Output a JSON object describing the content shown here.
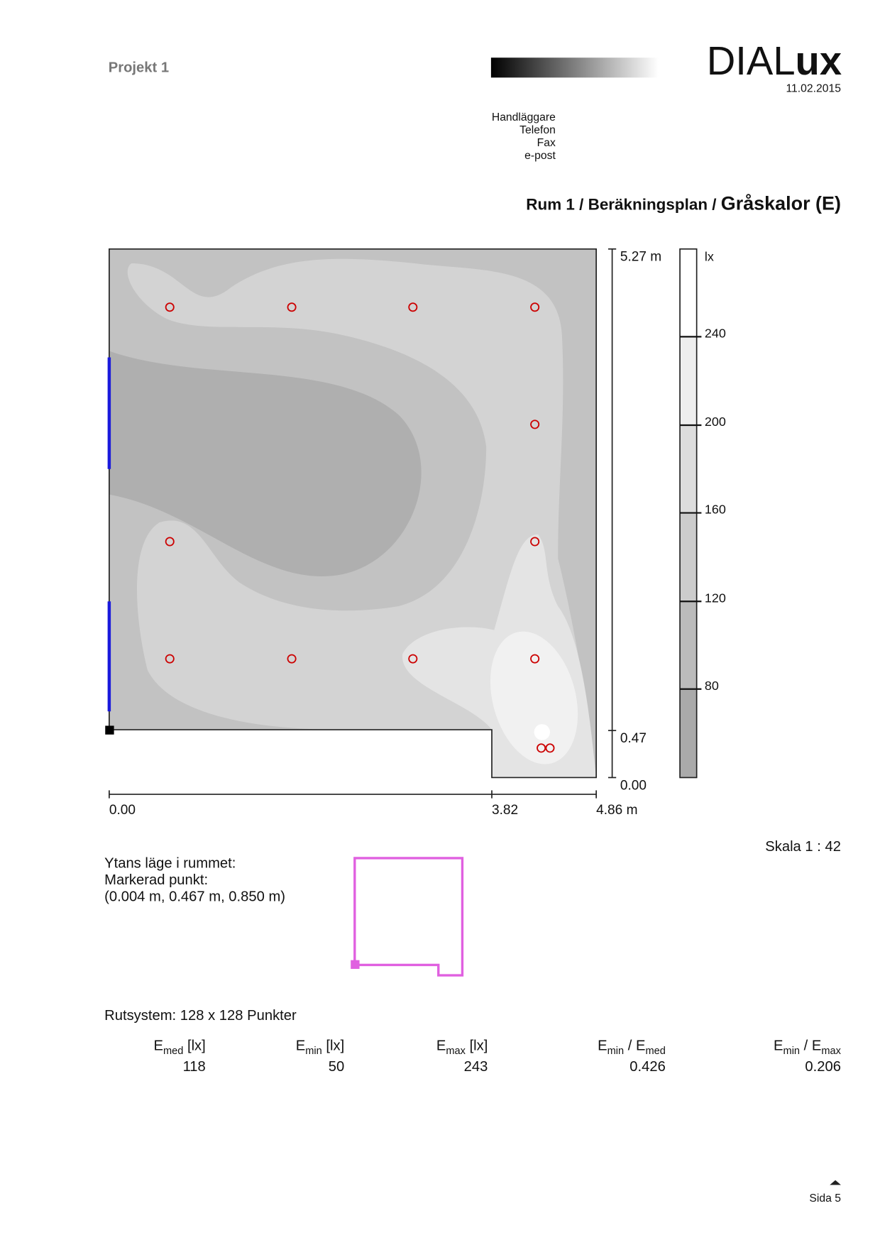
{
  "header": {
    "project": "Projekt 1",
    "logo_light": "DIAL",
    "logo_bold": "ux",
    "date": "11.02.2015",
    "contact": [
      "Handläggare",
      "Telefon",
      "Fax",
      "e-post"
    ]
  },
  "title": {
    "path": "Rum 1 / Beräkningsplan / ",
    "emphasis": "Gråskalor (E)"
  },
  "plan": {
    "y_dims": [
      "5.27 m",
      "0.47",
      "0.00"
    ],
    "x_dims": [
      "0.00",
      "3.82",
      "4.86 m"
    ]
  },
  "legend": {
    "unit": "lx",
    "levels": [
      "240",
      "200",
      "160",
      "120",
      "80"
    ]
  },
  "scale": "Skala 1 : 42",
  "position": {
    "lines": [
      "Ytans läge i rummet:",
      "Markerad punkt:",
      "(0.004 m, 0.467 m, 0.850 m)"
    ]
  },
  "grid": "Rutsystem: 128 x 128 Punkter",
  "stats": [
    {
      "parts": [
        "E",
        "med",
        " [lx]"
      ],
      "value": "118"
    },
    {
      "parts": [
        "E",
        "min",
        " [lx]"
      ],
      "value": "50"
    },
    {
      "parts": [
        "E",
        "max",
        " [lx]"
      ],
      "value": "243"
    },
    {
      "parts": [
        "E",
        "min",
        " / E",
        "med"
      ],
      "value": "0.426"
    },
    {
      "parts": [
        "E",
        "min",
        " / E",
        "max"
      ],
      "value": "0.206"
    }
  ],
  "footer": {
    "page": "Sida 5"
  }
}
